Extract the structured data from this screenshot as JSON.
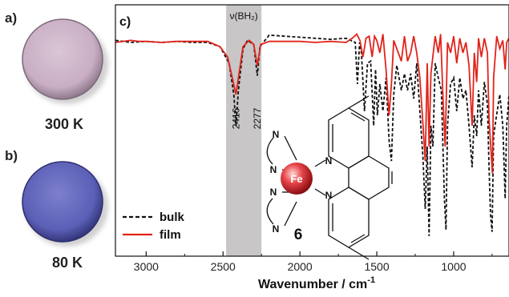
{
  "panels": {
    "a_label": "a)",
    "a_temp": "300 K",
    "a_color": "#c9aec4",
    "b_label": "b)",
    "b_temp": "80 K",
    "b_color": "#5b5fb6"
  },
  "chart_data": {
    "type": "line",
    "panel_label": "c)",
    "xlabel": "Wavenumber / cm",
    "xlabel_superscript": "-1",
    "x_reversed": true,
    "xlim": [
      3200,
      640
    ],
    "ylim": [
      0,
      1
    ],
    "xticks": [
      3000,
      2500,
      2000,
      1500,
      1000
    ],
    "grid": false,
    "legend_position": "bottom-left",
    "shaded_region": {
      "x_range": [
        2480,
        2250
      ],
      "label": "ν(BH₂)",
      "color": "#c8c6c6"
    },
    "annotations": [
      {
        "text": "2416",
        "x": 2416
      },
      {
        "text": "2277",
        "x": 2277
      }
    ],
    "compound_label": "6",
    "molecule": {
      "metal": "Fe",
      "atoms": [
        "N",
        "N",
        "N",
        "N",
        "N",
        "N"
      ]
    },
    "series": [
      {
        "name": "bulk",
        "color": "#111111",
        "style": "dashed",
        "points": [
          [
            3200,
            0.96
          ],
          [
            3100,
            0.95
          ],
          [
            3000,
            0.955
          ],
          [
            2900,
            0.95
          ],
          [
            2800,
            0.955
          ],
          [
            2700,
            0.95
          ],
          [
            2600,
            0.95
          ],
          [
            2520,
            0.93
          ],
          [
            2460,
            0.85
          ],
          [
            2430,
            0.7
          ],
          [
            2416,
            0.55
          ],
          [
            2400,
            0.72
          ],
          [
            2370,
            0.92
          ],
          [
            2340,
            0.96
          ],
          [
            2300,
            0.94
          ],
          [
            2277,
            0.79
          ],
          [
            2260,
            0.93
          ],
          [
            2200,
            0.985
          ],
          [
            2100,
            0.98
          ],
          [
            2000,
            0.975
          ],
          [
            1900,
            0.97
          ],
          [
            1800,
            0.965
          ],
          [
            1700,
            0.97
          ],
          [
            1640,
            0.95
          ],
          [
            1626,
            0.75
          ],
          [
            1612,
            0.95
          ],
          [
            1600,
            0.9
          ],
          [
            1580,
            0.62
          ],
          [
            1560,
            0.85
          ],
          [
            1540,
            0.86
          ],
          [
            1520,
            0.55
          ],
          [
            1508,
            0.82
          ],
          [
            1496,
            0.6
          ],
          [
            1480,
            0.75
          ],
          [
            1460,
            0.62
          ],
          [
            1440,
            0.78
          ],
          [
            1420,
            0.48
          ],
          [
            1405,
            0.38
          ],
          [
            1390,
            0.7
          ],
          [
            1370,
            0.84
          ],
          [
            1340,
            0.72
          ],
          [
            1320,
            0.8
          ],
          [
            1300,
            0.72
          ],
          [
            1280,
            0.8
          ],
          [
            1260,
            0.68
          ],
          [
            1240,
            0.85
          ],
          [
            1220,
            0.62
          ],
          [
            1200,
            0.4
          ],
          [
            1185,
            0.15
          ],
          [
            1172,
            0.45
          ],
          [
            1160,
            0.02
          ],
          [
            1148,
            0.55
          ],
          [
            1135,
            0.45
          ],
          [
            1120,
            0.85
          ],
          [
            1100,
            0.78
          ],
          [
            1080,
            0.72
          ],
          [
            1060,
            0.2
          ],
          [
            1050,
            0.05
          ],
          [
            1040,
            0.55
          ],
          [
            1020,
            0.75
          ],
          [
            1000,
            0.78
          ],
          [
            980,
            0.62
          ],
          [
            960,
            0.78
          ],
          [
            940,
            0.68
          ],
          [
            920,
            0.72
          ],
          [
            900,
            0.55
          ],
          [
            880,
            0.35
          ],
          [
            866,
            0.6
          ],
          [
            850,
            0.5
          ],
          [
            838,
            0.72
          ],
          [
            820,
            0.55
          ],
          [
            800,
            0.76
          ],
          [
            780,
            0.65
          ],
          [
            770,
            0.35
          ],
          [
            760,
            0.12
          ],
          [
            750,
            0.04
          ],
          [
            740,
            0.5
          ],
          [
            725,
            0.58
          ],
          [
            700,
            0.7
          ],
          [
            680,
            0.55
          ],
          [
            665,
            0.2
          ],
          [
            655,
            0.55
          ],
          [
            640,
            0.7
          ]
        ]
      },
      {
        "name": "film",
        "color": "#e0241b",
        "style": "solid",
        "points": [
          [
            3200,
            0.95
          ],
          [
            3100,
            0.96
          ],
          [
            3050,
            0.955
          ],
          [
            3000,
            0.955
          ],
          [
            2900,
            0.95
          ],
          [
            2800,
            0.955
          ],
          [
            2700,
            0.955
          ],
          [
            2600,
            0.955
          ],
          [
            2520,
            0.93
          ],
          [
            2470,
            0.88
          ],
          [
            2440,
            0.78
          ],
          [
            2416,
            0.7
          ],
          [
            2400,
            0.78
          ],
          [
            2370,
            0.93
          ],
          [
            2330,
            0.96
          ],
          [
            2300,
            0.94
          ],
          [
            2277,
            0.84
          ],
          [
            2255,
            0.94
          ],
          [
            2200,
            0.955
          ],
          [
            2100,
            0.955
          ],
          [
            2000,
            0.955
          ],
          [
            1900,
            0.95
          ],
          [
            1800,
            0.955
          ],
          [
            1700,
            0.95
          ],
          [
            1660,
            0.97
          ],
          [
            1630,
            0.99
          ],
          [
            1610,
            0.96
          ],
          [
            1590,
            0.88
          ],
          [
            1570,
            0.97
          ],
          [
            1550,
            0.98
          ],
          [
            1530,
            0.88
          ],
          [
            1515,
            0.98
          ],
          [
            1500,
            0.96
          ],
          [
            1480,
            0.9
          ],
          [
            1460,
            0.99
          ],
          [
            1440,
            0.82
          ],
          [
            1420,
            0.6
          ],
          [
            1405,
            0.75
          ],
          [
            1390,
            0.96
          ],
          [
            1370,
            0.92
          ],
          [
            1340,
            0.86
          ],
          [
            1320,
            0.98
          ],
          [
            1300,
            0.86
          ],
          [
            1280,
            0.9
          ],
          [
            1260,
            0.98
          ],
          [
            1240,
            0.9
          ],
          [
            1220,
            0.78
          ],
          [
            1200,
            0.56
          ],
          [
            1185,
            0.38
          ],
          [
            1172,
            0.85
          ],
          [
            1160,
            0.45
          ],
          [
            1148,
            0.8
          ],
          [
            1120,
            0.98
          ],
          [
            1100,
            0.9
          ],
          [
            1085,
            0.99
          ],
          [
            1065,
            0.6
          ],
          [
            1055,
            0.45
          ],
          [
            1040,
            0.95
          ],
          [
            1020,
            0.9
          ],
          [
            1000,
            0.98
          ],
          [
            980,
            0.85
          ],
          [
            960,
            0.97
          ],
          [
            940,
            0.9
          ],
          [
            920,
            0.95
          ],
          [
            900,
            0.84
          ],
          [
            880,
            0.55
          ],
          [
            866,
            0.9
          ],
          [
            850,
            0.76
          ],
          [
            838,
            0.97
          ],
          [
            820,
            0.88
          ],
          [
            800,
            0.97
          ],
          [
            780,
            0.9
          ],
          [
            770,
            0.58
          ],
          [
            758,
            0.44
          ],
          [
            748,
            0.32
          ],
          [
            740,
            0.78
          ],
          [
            720,
            0.98
          ],
          [
            700,
            0.92
          ],
          [
            680,
            0.96
          ],
          [
            665,
            0.82
          ],
          [
            655,
            0.95
          ],
          [
            640,
            0.97
          ]
        ]
      }
    ]
  }
}
